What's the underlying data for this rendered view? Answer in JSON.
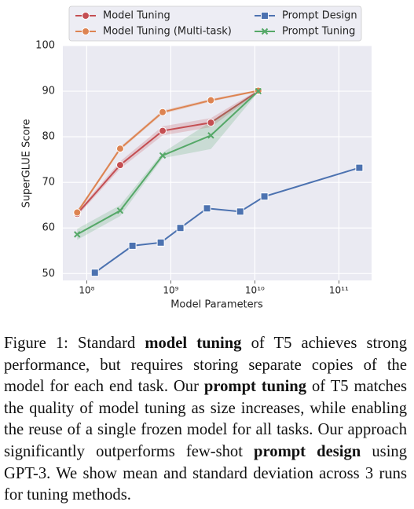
{
  "chart_data": {
    "type": "line",
    "x_label": "Model Parameters",
    "y_label": "SuperGLUE Score",
    "xscale": "log",
    "xlim": [
      52000000,
      245000000000
    ],
    "xticks": [
      {
        "value": 100000000,
        "label": "10⁸"
      },
      {
        "value": 1000000000,
        "label": "10⁹"
      },
      {
        "value": 10000000000,
        "label": "10¹⁰"
      },
      {
        "value": 100000000000,
        "label": "10¹¹"
      }
    ],
    "ylim": [
      48.5,
      100
    ],
    "yticks": [
      50,
      60,
      70,
      80,
      90,
      100
    ],
    "grid": true,
    "legend": "top",
    "series": [
      {
        "name": "Model Tuning",
        "color": "#c44e52",
        "marker": "circle",
        "x": [
          77000000,
          250000000,
          800000000,
          3000000000,
          11000000000
        ],
        "values": [
          63.1,
          73.8,
          81.3,
          83.1,
          90.0
        ],
        "std": [
          0.5,
          0.8,
          1.0,
          1.0,
          0.3
        ]
      },
      {
        "name": "Model Tuning (Multi-task)",
        "color": "#dd8452",
        "marker": "circle",
        "x": [
          77000000,
          250000000,
          800000000,
          3000000000,
          11000000000
        ],
        "values": [
          63.4,
          77.4,
          85.4,
          88.0,
          90.1
        ],
        "std": [
          0.4,
          0.4,
          0.4,
          0.3,
          0.2
        ]
      },
      {
        "name": "Prompt Design",
        "color": "#4c72b0",
        "marker": "square",
        "x": [
          125000000,
          350000000,
          760000000,
          1300000000,
          2700000000,
          6700000000,
          13000000000,
          175000000000
        ],
        "values": [
          50.2,
          56.1,
          56.8,
          60.0,
          64.3,
          63.6,
          66.9,
          73.2
        ]
      },
      {
        "name": "Prompt Tuning",
        "color": "#55a868",
        "marker": "x",
        "x": [
          77000000,
          250000000,
          800000000,
          3000000000,
          11000000000
        ],
        "values": [
          58.6,
          63.8,
          75.9,
          80.3,
          90.0
        ],
        "std": [
          1.2,
          1.2,
          0.6,
          3.0,
          0.2
        ]
      }
    ]
  },
  "caption": [
    {
      "text": "Figure 1: Standard ",
      "bold": false
    },
    {
      "text": "model tuning",
      "bold": true
    },
    {
      "text": " of T5 achieves strong performance, but requires storing separate copies of the model for each end task.  Our ",
      "bold": false
    },
    {
      "text": "prompt tuning",
      "bold": true
    },
    {
      "text": " of T5 matches the quality of model tuning as size increases, while enabling the reuse of a single frozen model for all tasks. Our approach significantly outperforms few-shot ",
      "bold": false
    },
    {
      "text": "prompt design",
      "bold": true
    },
    {
      "text": " using GPT-3. We show mean and standard deviation across 3 runs for tuning methods.",
      "bold": false
    }
  ]
}
